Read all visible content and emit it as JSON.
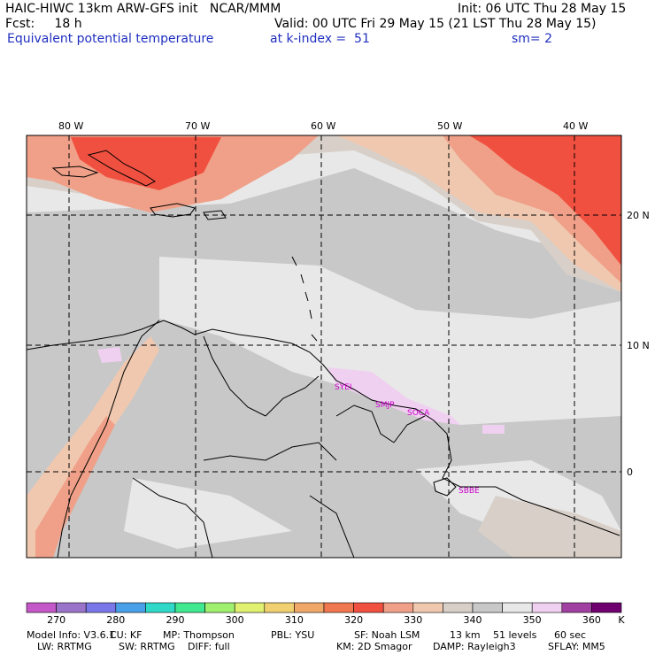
{
  "header": {
    "model_line": "HAIC-HIWC 13km ARW-GFS init   NCAR/MMM",
    "init_line": "Init: 06 UTC Thu 28 May 15",
    "fcst_line": "Fcst:     18 h",
    "valid_line": "Valid: 00 UTC Fri 29 May 15 (21 LST Thu 28 May 15)",
    "field_title": "Equivalent potential temperature",
    "level_text": "at k-index =  51",
    "smooth_text": "sm= 2"
  },
  "lon_labels": [
    "80 W",
    "70 W",
    "60 W",
    "50 W",
    "40 W"
  ],
  "lat_labels": [
    "20 N",
    "10 N",
    "0"
  ],
  "stations": [
    "SYEI",
    "SMJP",
    "SOCA",
    "SBBE"
  ],
  "colorbar": {
    "ticks": [
      "270",
      "280",
      "290",
      "300",
      "310",
      "320",
      "330",
      "340",
      "350",
      "360"
    ],
    "unit": "K",
    "colors": [
      "#c458c8",
      "#9a74c8",
      "#7a78e8",
      "#4aa0e8",
      "#30d8c8",
      "#40e890",
      "#a0f070",
      "#e0f070",
      "#f0d070",
      "#f0a868",
      "#f07850",
      "#f05040",
      "#f0a088",
      "#f0c8b0",
      "#d8d0c8",
      "#c8c8c8",
      "#e8e8e8",
      "#f0d0f0",
      "#a040a0",
      "#700070"
    ]
  },
  "info": {
    "line1": [
      "Model Info: V3.6.1",
      "CU: KF",
      "MP: Thompson",
      "PBL: YSU",
      "SF: Noah LSM",
      "13 km",
      "51 levels",
      "60 sec"
    ],
    "line2": [
      "LW: RRTMG",
      "SW: RRTMG",
      "DIFF: full",
      "KM: 2D Smagor",
      "DAMP: Rayleigh3",
      "SFLAY: MM5"
    ]
  }
}
